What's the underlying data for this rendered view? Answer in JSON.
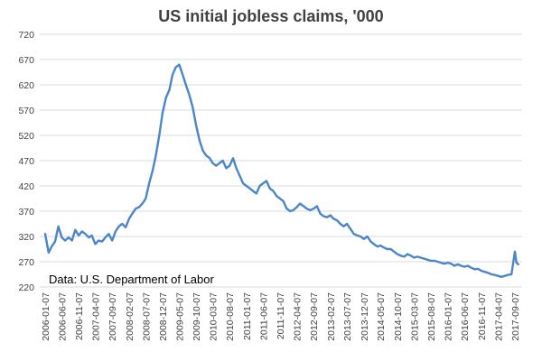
{
  "chart_data": {
    "type": "line",
    "title": "US initial jobless claims, '000",
    "source_note": "Data: U.S. Department of Labor",
    "xlabel": "",
    "ylabel": "",
    "ylim": [
      220,
      720
    ],
    "y_ticks": [
      "720",
      "670",
      "620",
      "570",
      "520",
      "470",
      "420",
      "370",
      "320",
      "270",
      "220"
    ],
    "x_tick_labels": [
      "2006-01-07",
      "2006-06-07",
      "2006-11-07",
      "2007-04-07",
      "2007-09-07",
      "2008-02-07",
      "2008-07-07",
      "2008-12-07",
      "2009-05-07",
      "2009-10-07",
      "2010-03-07",
      "2010-08-07",
      "2011-01-07",
      "2011-06-07",
      "2011-11-07",
      "2012-04-07",
      "2012-09-07",
      "2013-02-07",
      "2013-07-07",
      "2013-12-07",
      "2014-05-07",
      "2014-10-07",
      "2015-03-07",
      "2015-08-07",
      "2016-01-07",
      "2016-06-07",
      "2016-11-07",
      "2017-04-07",
      "2017-09-07"
    ],
    "grid": true,
    "line_color": "#4a86c8",
    "series": [
      {
        "x": [
          "2006-01-07",
          "2006-02-07",
          "2006-03-07",
          "2006-04-07",
          "2006-05-07",
          "2006-06-07",
          "2006-07-07",
          "2006-08-07",
          "2006-09-07",
          "2006-10-07",
          "2006-11-07",
          "2006-12-07",
          "2007-01-07",
          "2007-02-07",
          "2007-03-07",
          "2007-04-07",
          "2007-05-07",
          "2007-06-07",
          "2007-07-07",
          "2007-08-07",
          "2007-09-07",
          "2007-10-07",
          "2007-11-07",
          "2007-12-07",
          "2008-01-07",
          "2008-02-07",
          "2008-03-07",
          "2008-04-07",
          "2008-05-07",
          "2008-06-07",
          "2008-07-07",
          "2008-08-07",
          "2008-09-07",
          "2008-10-07",
          "2008-11-07",
          "2008-12-07",
          "2009-01-07",
          "2009-02-07",
          "2009-03-07",
          "2009-04-07",
          "2009-05-07",
          "2009-06-07",
          "2009-07-07",
          "2009-08-07",
          "2009-09-07",
          "2009-10-07",
          "2009-11-07",
          "2009-12-07",
          "2010-01-07",
          "2010-02-07",
          "2010-03-07",
          "2010-04-07",
          "2010-05-07",
          "2010-06-07",
          "2010-07-07",
          "2010-08-07",
          "2010-09-07",
          "2010-10-07",
          "2010-11-07",
          "2010-12-07",
          "2011-01-07",
          "2011-02-07",
          "2011-03-07",
          "2011-04-07",
          "2011-05-07",
          "2011-06-07",
          "2011-07-07",
          "2011-08-07",
          "2011-09-07",
          "2011-10-07",
          "2011-11-07",
          "2011-12-07",
          "2012-01-07",
          "2012-02-07",
          "2012-03-07",
          "2012-04-07",
          "2012-05-07",
          "2012-06-07",
          "2012-07-07",
          "2012-08-07",
          "2012-09-07",
          "2012-10-07",
          "2012-11-07",
          "2012-12-07",
          "2013-01-07",
          "2013-02-07",
          "2013-03-07",
          "2013-04-07",
          "2013-05-07",
          "2013-06-07",
          "2013-07-07",
          "2013-08-07",
          "2013-09-07",
          "2013-10-07",
          "2013-11-07",
          "2013-12-07",
          "2014-01-07",
          "2014-02-07",
          "2014-03-07",
          "2014-04-07",
          "2014-05-07",
          "2014-06-07",
          "2014-07-07",
          "2014-08-07",
          "2014-09-07",
          "2014-10-07",
          "2014-11-07",
          "2014-12-07",
          "2015-01-07",
          "2015-02-07",
          "2015-03-07",
          "2015-04-07",
          "2015-05-07",
          "2015-06-07",
          "2015-07-07",
          "2015-08-07",
          "2015-09-07",
          "2015-10-07",
          "2015-11-07",
          "2015-12-07",
          "2016-01-07",
          "2016-02-07",
          "2016-03-07",
          "2016-04-07",
          "2016-05-07",
          "2016-06-07",
          "2016-07-07",
          "2016-08-07",
          "2016-09-07",
          "2016-10-07",
          "2016-11-07",
          "2016-12-07",
          "2017-01-07",
          "2017-02-07",
          "2017-03-07",
          "2017-04-07",
          "2017-05-07",
          "2017-06-07",
          "2017-07-07",
          "2017-08-07",
          "2017-09-07",
          "2017-09-21",
          "2017-10-07"
        ],
        "values": [
          325,
          288,
          300,
          310,
          340,
          318,
          312,
          318,
          312,
          333,
          322,
          330,
          325,
          318,
          322,
          305,
          312,
          310,
          318,
          325,
          312,
          330,
          340,
          345,
          338,
          355,
          365,
          375,
          378,
          385,
          395,
          425,
          450,
          480,
          520,
          565,
          595,
          610,
          640,
          655,
          660,
          640,
          620,
          600,
          575,
          540,
          510,
          490,
          480,
          475,
          465,
          460,
          465,
          470,
          455,
          460,
          475,
          455,
          440,
          425,
          420,
          415,
          410,
          405,
          420,
          425,
          430,
          415,
          410,
          400,
          395,
          390,
          375,
          370,
          372,
          378,
          385,
          380,
          375,
          372,
          375,
          380,
          365,
          360,
          358,
          362,
          355,
          352,
          345,
          340,
          345,
          335,
          325,
          322,
          320,
          315,
          320,
          310,
          305,
          300,
          302,
          298,
          295,
          295,
          290,
          285,
          282,
          280,
          285,
          282,
          278,
          280,
          278,
          276,
          274,
          272,
          272,
          270,
          268,
          266,
          268,
          266,
          262,
          265,
          262,
          260,
          262,
          258,
          255,
          256,
          252,
          250,
          248,
          245,
          244,
          242,
          240,
          242,
          244,
          245,
          290,
          268,
          265
        ]
      }
    ]
  }
}
